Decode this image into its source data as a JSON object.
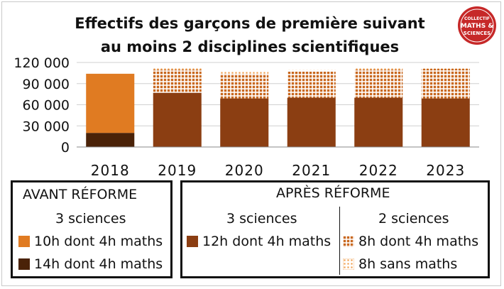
{
  "colors": {
    "avant_10h": "#E07B22",
    "avant_14h": "#4A2208",
    "apres_12h": "#8B3E12",
    "apres_8h_dont": "#C8681F",
    "apres_8h_sans": "#F0A050",
    "logo_red": "#C62828"
  },
  "logo": {
    "line1": "COLLECTIF",
    "line2": "MATHS &",
    "line3": "SCIENCES"
  },
  "chart_data": {
    "type": "bar",
    "stacked": true,
    "title_line1": "Effectifs des garçons de première suivant",
    "title_line2": "au moins 2 disciplines scientifiques",
    "categories": [
      "2018",
      "2019",
      "2020",
      "2021",
      "2022",
      "2023"
    ],
    "ylim": [
      0,
      120000
    ],
    "yticks": [
      0,
      30000,
      60000,
      90000,
      120000
    ],
    "ytick_labels": [
      "0",
      "30 000",
      "60 000",
      "90 000",
      "120 000"
    ],
    "grid": true,
    "series": [
      {
        "key": "avant_14h",
        "values": [
          20000,
          0,
          0,
          0,
          0,
          0
        ]
      },
      {
        "key": "avant_10h",
        "values": [
          84000,
          0,
          0,
          0,
          0,
          0
        ]
      },
      {
        "key": "apres_12h",
        "values": [
          0,
          77000,
          69000,
          70000,
          70000,
          69000
        ]
      },
      {
        "key": "apres_8h_dont",
        "values": [
          0,
          33000,
          35000,
          37000,
          40000,
          42000
        ]
      },
      {
        "key": "apres_8h_sans",
        "values": [
          0,
          2000,
          2500,
          2500,
          2000,
          1500
        ]
      }
    ]
  },
  "legend": {
    "avant": {
      "title": "AVANT RÉFORME",
      "subtitle": "3 sciences",
      "items": [
        "10h dont 4h maths",
        "14h dont 4h maths"
      ]
    },
    "apres": {
      "title": "APRÈS RÉFORME",
      "sub_left": "3 sciences",
      "sub_right": "2 sciences",
      "item_12h": "12h dont 4h maths",
      "item_8h_dont": "8h dont 4h maths",
      "item_8h_sans": "8h sans maths"
    }
  }
}
